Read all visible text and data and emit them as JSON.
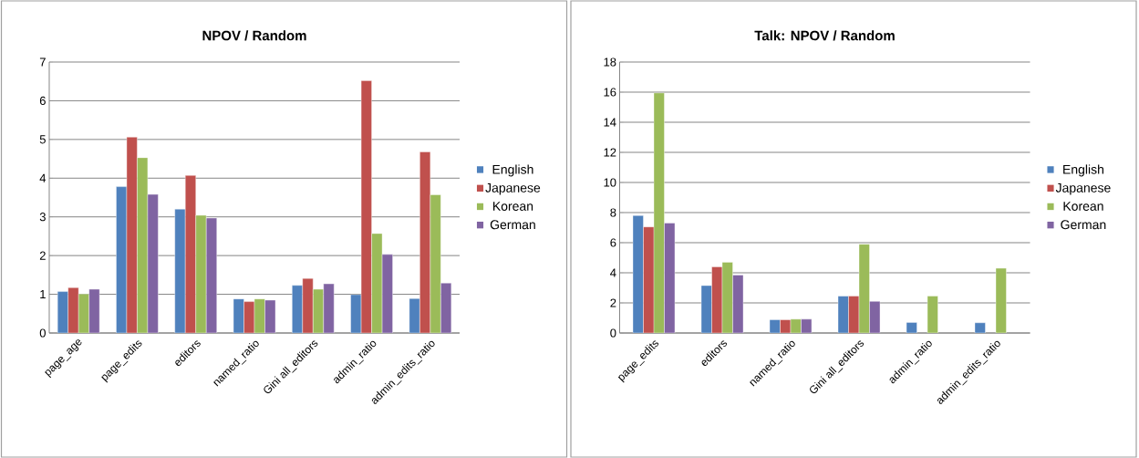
{
  "chart_data": [
    {
      "type": "bar",
      "title": "NPOV / Random",
      "categories": [
        "page_age",
        "page_edits",
        "editors",
        "named_ratio",
        "Gini all_editors",
        "admin_ratio",
        "admin_edits_ratio"
      ],
      "series": [
        {
          "name": "English",
          "color": "#4f81bd",
          "values": [
            1.07,
            3.78,
            3.2,
            0.88,
            1.23,
            0.99,
            0.89
          ]
        },
        {
          "name": "Japanese",
          "color": "#c0504d",
          "values": [
            1.17,
            5.06,
            4.07,
            0.81,
            1.41,
            6.52,
            4.68
          ]
        },
        {
          "name": "Korean",
          "color": "#9bbb59",
          "values": [
            1.01,
            4.53,
            3.04,
            0.88,
            1.13,
            2.57,
            3.57
          ]
        },
        {
          "name": "German",
          "color": "#8064a2",
          "values": [
            1.13,
            3.58,
            2.97,
            0.85,
            1.27,
            2.03,
            1.29
          ]
        }
      ],
      "ylim": [
        0,
        7
      ],
      "yticks": [
        0,
        1,
        2,
        3,
        4,
        5,
        6,
        7
      ],
      "grid": "y",
      "legend": "right"
    },
    {
      "type": "bar",
      "title": "Talk: NPOV / Random",
      "categories": [
        "page_edits",
        "editors",
        "named_ratio",
        "Gini all_editors",
        "admin_ratio",
        "admin_edits_ratio"
      ],
      "series": [
        {
          "name": "English",
          "color": "#4f81bd",
          "values": [
            7.8,
            3.15,
            0.88,
            2.45,
            0.7,
            0.68
          ]
        },
        {
          "name": "Japanese",
          "color": "#c0504d",
          "values": [
            7.05,
            4.4,
            0.88,
            2.45,
            null,
            null
          ]
        },
        {
          "name": "Korean",
          "color": "#9bbb59",
          "values": [
            15.95,
            4.7,
            0.92,
            5.9,
            2.45,
            4.3
          ]
        },
        {
          "name": "German",
          "color": "#8064a2",
          "values": [
            7.3,
            3.85,
            0.92,
            2.1,
            null,
            null
          ]
        }
      ],
      "ylim": [
        0,
        18
      ],
      "yticks": [
        0,
        2,
        4,
        6,
        8,
        10,
        12,
        14,
        16,
        18
      ],
      "grid": "y",
      "legend": "right"
    }
  ]
}
